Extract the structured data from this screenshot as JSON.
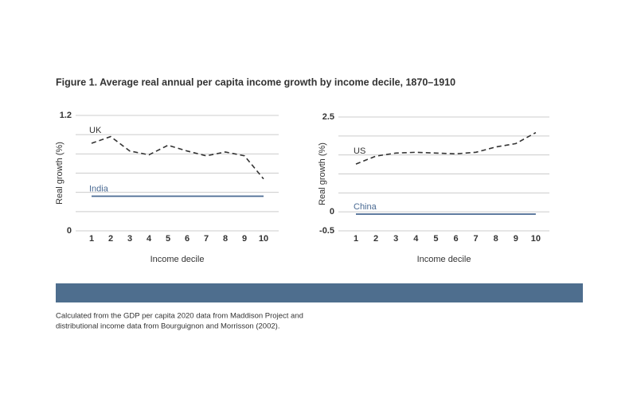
{
  "title": "Figure 1. Average real annual per capita income growth by income decile, 1870–1910",
  "footnote": [
    "Calculated from the GDP per capita 2020 data from Maddison Project and",
    "distributional income data from Bourguignon and Morrisson (2002)."
  ],
  "chart_data": [
    {
      "type": "line",
      "xlabel": "Income decile",
      "ylabel": "Real growth (%)",
      "categories": [
        "1",
        "2",
        "3",
        "4",
        "5",
        "6",
        "7",
        "8",
        "9",
        "10"
      ],
      "ylim": [
        0,
        1.2
      ],
      "yticks": [
        0,
        1.2
      ],
      "gridlines": [
        0.2,
        0.4,
        0.6,
        0.8,
        1.0
      ],
      "series": [
        {
          "name": "UK",
          "color": "#333333",
          "style": "dashed",
          "values": [
            0.91,
            0.98,
            0.83,
            0.79,
            0.89,
            0.83,
            0.78,
            0.82,
            0.78,
            0.54
          ]
        },
        {
          "name": "India",
          "color": "#4a6a93",
          "style": "solid",
          "values": [
            0.36,
            0.36,
            0.36,
            0.36,
            0.36,
            0.36,
            0.36,
            0.36,
            0.36,
            0.36
          ]
        }
      ]
    },
    {
      "type": "line",
      "xlabel": "Income decile",
      "ylabel": "Real growth (%)",
      "categories": [
        "1",
        "2",
        "3",
        "4",
        "5",
        "6",
        "7",
        "8",
        "9",
        "10"
      ],
      "ylim": [
        -0.5,
        2.5
      ],
      "yticks": [
        -0.5,
        0,
        2.5
      ],
      "gridlines": [
        0.5,
        1.0,
        1.5,
        2.0
      ],
      "series": [
        {
          "name": "US",
          "color": "#333333",
          "style": "dashed",
          "values": [
            1.26,
            1.47,
            1.55,
            1.57,
            1.55,
            1.53,
            1.57,
            1.71,
            1.8,
            2.09
          ]
        },
        {
          "name": "China",
          "color": "#4a6a93",
          "style": "solid",
          "values": [
            -0.06,
            -0.06,
            -0.06,
            -0.06,
            -0.06,
            -0.06,
            -0.06,
            -0.06,
            -0.06,
            -0.06
          ]
        }
      ]
    }
  ]
}
